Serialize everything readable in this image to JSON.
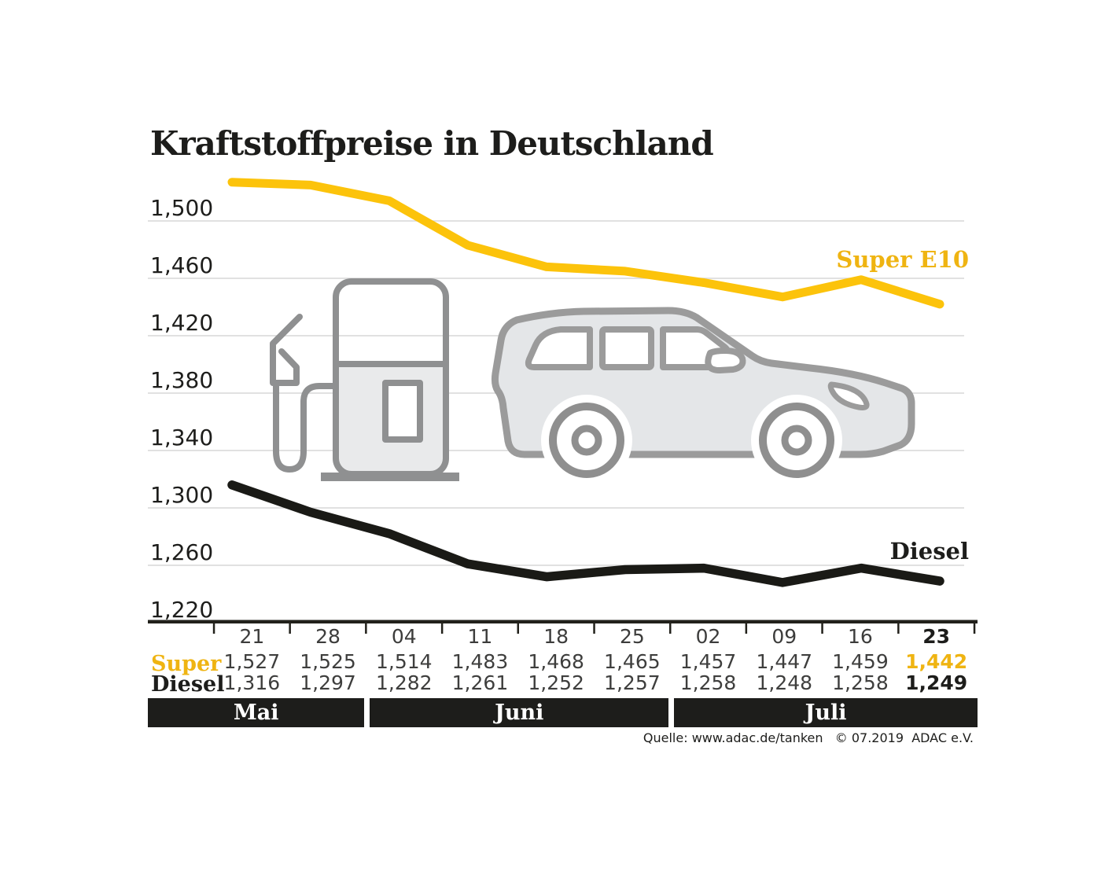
{
  "title": "Kraftstoffpreise in Deutschland",
  "source": "Quelle: www.adac.de/tanken   © 07.2019  ADAC e.V.",
  "colors": {
    "super_line": "#fcc30b",
    "super_text": "#efb412",
    "diesel_line": "#1a1a16",
    "black_text": "#1d1d1b",
    "grid": "#d7d7d7",
    "axis": "#22211b",
    "pump_gray": "#8f9091",
    "pump_panel": "#e9eaeb",
    "car_gray": "#9b9b9b",
    "car_body": "#e4e6e8"
  },
  "chart_data": {
    "type": "line",
    "title": "Kraftstoffpreise in Deutschland",
    "x": [
      "21",
      "28",
      "04",
      "11",
      "18",
      "25",
      "02",
      "09",
      "16",
      "23"
    ],
    "months": [
      {
        "label": "Mai",
        "span": 2
      },
      {
        "label": "Juni",
        "span": 4
      },
      {
        "label": "Juli",
        "span": 4
      }
    ],
    "series": [
      {
        "name": "Super E10",
        "line_color": "#fcc30b",
        "values": [
          1527,
          1525,
          1514,
          1483,
          1468,
          1465,
          1457,
          1447,
          1459,
          1442
        ]
      },
      {
        "name": "Diesel",
        "line_color": "#1a1a16",
        "values": [
          1316,
          1297,
          1282,
          1261,
          1252,
          1257,
          1258,
          1248,
          1258,
          1249
        ]
      }
    ],
    "y_ticks": [
      "1,500",
      "1,460",
      "1,420",
      "1,380",
      "1,340",
      "1,300",
      "1,260",
      "1,220"
    ],
    "y_tick_values": [
      1500,
      1460,
      1420,
      1380,
      1340,
      1300,
      1260,
      1220
    ],
    "ylim": [
      1187,
      1534
    ],
    "grid": true,
    "legend_position": "inline-right"
  },
  "table": {
    "dates": [
      "21",
      "28",
      "04",
      "11",
      "18",
      "25",
      "02",
      "09",
      "16",
      "23"
    ],
    "rows": [
      {
        "label": "Super",
        "values": [
          "1,527",
          "1,525",
          "1,514",
          "1,483",
          "1,468",
          "1,465",
          "1,457",
          "1,447",
          "1,459",
          "1,442"
        ]
      },
      {
        "label": "Diesel",
        "values": [
          "1,316",
          "1,297",
          "1,282",
          "1,261",
          "1,252",
          "1,257",
          "1,258",
          "1,248",
          "1,258",
          "1,249"
        ]
      }
    ]
  }
}
